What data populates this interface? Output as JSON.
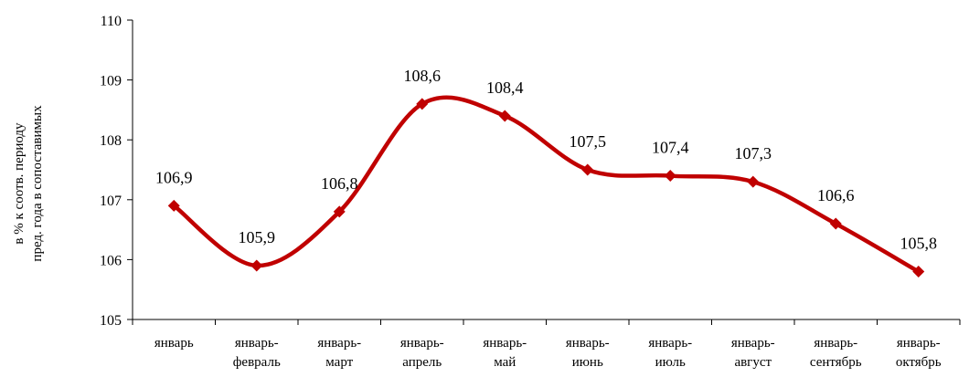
{
  "chart_data": {
    "type": "line",
    "categories": [
      [
        "январь"
      ],
      [
        "январь-",
        "февраль"
      ],
      [
        "январь-",
        "март"
      ],
      [
        "январь-",
        "апрель"
      ],
      [
        "январь-",
        "май"
      ],
      [
        "январь-",
        "июнь"
      ],
      [
        "январь-",
        "июль"
      ],
      [
        "январь-",
        "август"
      ],
      [
        "январь-",
        "сентябрь"
      ],
      [
        "январь-",
        "октябрь"
      ]
    ],
    "values": [
      106.9,
      105.9,
      106.8,
      108.6,
      108.4,
      107.5,
      107.4,
      107.3,
      106.6,
      105.8
    ],
    "data_labels": [
      "106,9",
      "105,9",
      "106,8",
      "108,6",
      "108,4",
      "107,5",
      "107,4",
      "107,3",
      "106,6",
      "105,8"
    ],
    "ylabel_lines": [
      "пред. года в сопоставимых",
      "в % к соотв. периоду"
    ],
    "ylim": [
      105,
      110
    ],
    "yticks": [
      105,
      106,
      107,
      108,
      109,
      110
    ],
    "ytick_labels": [
      "105",
      "106",
      "107",
      "108",
      "109",
      "110"
    ],
    "grid": false,
    "smooth": true,
    "line_color": "#c00000",
    "marker": "diamond"
  }
}
